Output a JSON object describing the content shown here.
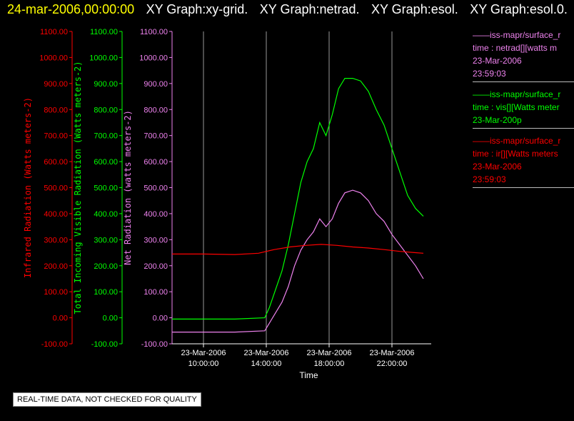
{
  "header": {
    "date": "24-mar-2006,00:00:00",
    "titles": [
      "XY Graph:xy-grid.",
      "XY Graph:netrad.",
      "XY Graph:esol.",
      "XY Graph:esol.0."
    ]
  },
  "legend": [
    {
      "line1": "——iss-mapr/surface_r",
      "line2": "time : netrad[][watts m",
      "line3": "23-Mar-2006",
      "line4": "23:59:03",
      "color": "#ee82ee"
    },
    {
      "line1": "——iss-mapr/surface_r",
      "line2": "time : vis[][Watts meter",
      "line3": "23-Mar-200p",
      "line4": "",
      "color": "#00ff00"
    },
    {
      "line1": "——iss-mapr/surface_r",
      "line2": "time : ir[][Watts meters",
      "line3": "23-Mar-2006",
      "line4": "23:59:03",
      "color": "#ff0000"
    }
  ],
  "disclaimer": "REAL-TIME DATA, NOT CHECKED FOR QUALITY",
  "chart_data": {
    "type": "line",
    "xlabel": "Time",
    "xlim": [
      8,
      24.5
    ],
    "x_ticks": [
      {
        "x": 10,
        "line1": "23-Mar-2006",
        "line2": "10:00:00"
      },
      {
        "x": 14,
        "line1": "23-Mar-2006",
        "line2": "14:00:00"
      },
      {
        "x": 18,
        "line1": "23-Mar-2006",
        "line2": "18:00:00"
      },
      {
        "x": 22,
        "line1": "23-Mar-2006",
        "line2": "22:00:00"
      }
    ],
    "y_ticks": [
      "1100.00",
      "1000.00",
      "900.00",
      "800.00",
      "700.00",
      "600.00",
      "500.00",
      "400.00",
      "300.00",
      "200.00",
      "100.00",
      "0.00",
      "-100.00"
    ],
    "ylim": [
      -100,
      1100
    ],
    "axes": [
      {
        "label": "Infrared Radiation (Watts meters-2)",
        "color": "#ff0000"
      },
      {
        "label": "Total Incoming Visible Radiation (Watts meters-2)",
        "color": "#00ff00"
      },
      {
        "label": "Net Radiation (watts meters-2)",
        "color": "#ee82ee"
      }
    ],
    "series": [
      {
        "color": "#00ff00",
        "x": [
          8,
          12,
          13.9,
          14.2,
          14.6,
          15.0,
          15.4,
          15.8,
          16.2,
          16.6,
          17.0,
          17.4,
          17.8,
          18.2,
          18.6,
          19.0,
          19.5,
          20.0,
          20.5,
          21.0,
          21.5,
          22.0,
          22.5,
          23.0,
          23.5,
          24.0
        ],
        "y": [
          -5,
          -5,
          0,
          40,
          110,
          180,
          280,
          400,
          520,
          600,
          650,
          750,
          700,
          780,
          880,
          920,
          920,
          910,
          870,
          800,
          740,
          650,
          560,
          470,
          420,
          390
        ]
      },
      {
        "color": "#ee82ee",
        "x": [
          8,
          12,
          13.9,
          14.2,
          14.6,
          15.0,
          15.4,
          15.8,
          16.2,
          16.6,
          17.0,
          17.4,
          17.8,
          18.2,
          18.6,
          19.0,
          19.5,
          20.0,
          20.5,
          21.0,
          21.5,
          22.0,
          22.5,
          23.0,
          23.5,
          24.0
        ],
        "y": [
          -55,
          -55,
          -50,
          -20,
          20,
          60,
          120,
          200,
          260,
          300,
          330,
          380,
          350,
          380,
          440,
          480,
          490,
          480,
          450,
          400,
          370,
          320,
          280,
          240,
          200,
          150
        ]
      },
      {
        "color": "#ff0000",
        "x": [
          8,
          10,
          12,
          13.5,
          14.5,
          15.5,
          16.5,
          17.5,
          18.5,
          19.5,
          20.5,
          21.5,
          22.5,
          23.5,
          24.0
        ],
        "y": [
          245,
          245,
          243,
          248,
          262,
          272,
          278,
          282,
          278,
          272,
          268,
          262,
          255,
          250,
          248
        ]
      }
    ]
  }
}
